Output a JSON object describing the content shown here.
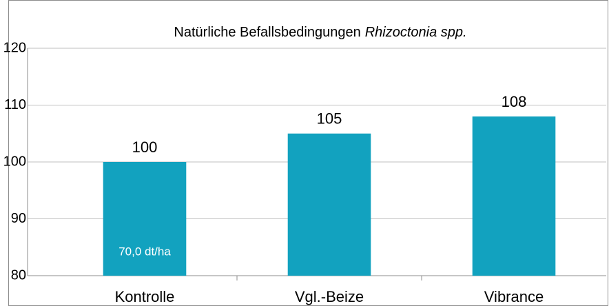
{
  "chart_data": {
    "type": "bar",
    "title": "Natürliche Befallsbedingungen",
    "title_italic": "Rhizoctonia spp.",
    "categories": [
      "Kontrolle",
      "Vgl.-Beize",
      "Vibrance"
    ],
    "values": [
      100,
      105,
      108
    ],
    "color": "#12a2bf",
    "annotation": "70,0 dt/ha",
    "ylim": [
      80,
      120
    ],
    "yticks": [
      80,
      90,
      100,
      110,
      120
    ],
    "grid": true
  }
}
